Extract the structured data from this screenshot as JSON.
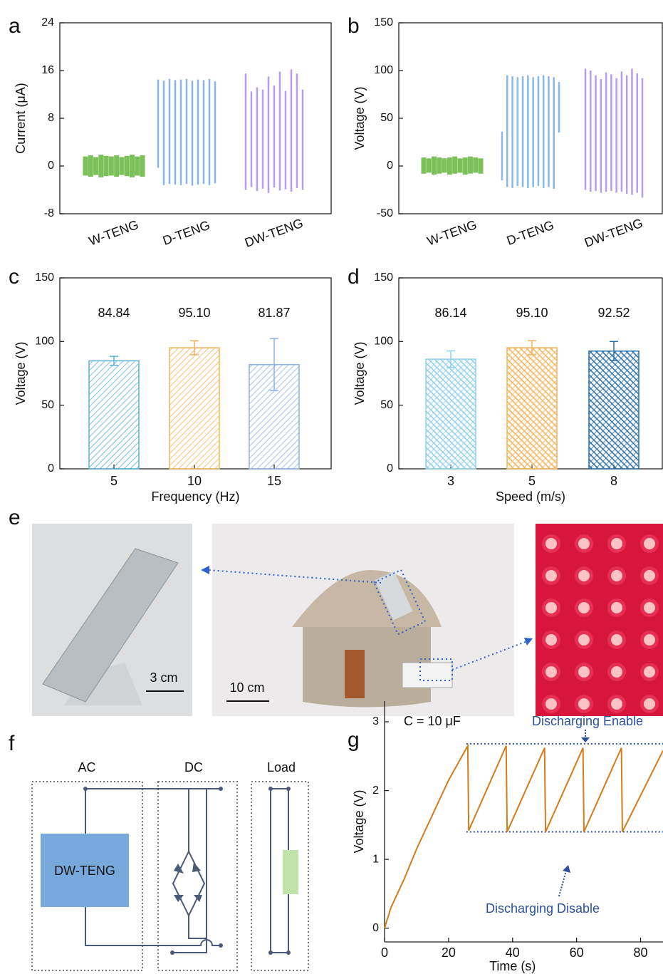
{
  "chart_data": [
    {
      "type": "spikes",
      "label": "a",
      "ylabel": "Current (μA)",
      "categories": [
        "W-TENG",
        "D-TENG",
        "DW-TENG"
      ],
      "colors": [
        "#7cc05a",
        "#8ab6ee",
        "#b79cf0"
      ],
      "peaks": [
        [
          1.6,
          1.8,
          1.5,
          1.9,
          1.7,
          1.6,
          1.8,
          1.5,
          1.7,
          1.9,
          1.6,
          1.8
        ],
        [
          14.5,
          14.3,
          14.6,
          14.4,
          14.5,
          14.6,
          14.3,
          14.5,
          14.4,
          14.6,
          14.2
        ],
        [
          15.5,
          12.5,
          13.2,
          12.8,
          15,
          13.5,
          15.8,
          12.6,
          16.2,
          15.5,
          12.8
        ]
      ],
      "troughs": [
        [
          -1.6,
          -1.8,
          -1.5,
          -1.9,
          -1.7,
          -1.6,
          -1.8,
          -1.5,
          -1.7,
          -1.9,
          -1.6,
          -1.8
        ],
        [
          -0.3,
          -3.2,
          -3,
          -3.1,
          -3.2,
          -3,
          -3.3,
          -3.1,
          -3,
          -3.2,
          -2.9
        ],
        [
          -4,
          -3.5,
          -4.2,
          -3.8,
          -4.5,
          -3.6,
          -4.1,
          -3.9,
          -4.3,
          -3.7,
          -4
        ]
      ],
      "ylim": [
        -8,
        24
      ],
      "yticks": [
        -8,
        0,
        8,
        16,
        24
      ]
    },
    {
      "type": "spikes",
      "label": "b",
      "ylabel": "Voltage (V)",
      "categories": [
        "W-TENG",
        "D-TENG",
        "DW-TENG"
      ],
      "colors": [
        "#7cc05a",
        "#8ab6ee",
        "#b79cf0"
      ],
      "peaks": [
        [
          9,
          8,
          10,
          9,
          8,
          9,
          10,
          8,
          9,
          10,
          9,
          8
        ],
        [
          36,
          95,
          94,
          93,
          94,
          95,
          93,
          94,
          95,
          94,
          93,
          88
        ],
        [
          102,
          100,
          95,
          91,
          98,
          96,
          92,
          99,
          95,
          102,
          97,
          92
        ]
      ],
      "troughs": [
        [
          -8,
          -7,
          -9,
          -8,
          -7,
          -9,
          -8,
          -7,
          -9,
          -8,
          -7,
          -8
        ],
        [
          -15,
          -22,
          -23,
          -21,
          -22,
          -23,
          -22,
          -21,
          -23,
          -22,
          -24,
          35
        ],
        [
          -25,
          -27,
          -26,
          -28,
          -27,
          -26,
          -28,
          -27,
          -29,
          -30,
          -28,
          -33
        ]
      ],
      "ylim": [
        -50,
        150
      ],
      "yticks": [
        -50,
        0,
        50,
        100,
        150
      ]
    },
    {
      "type": "bar",
      "label": "c",
      "ylabel": "Voltage (V)",
      "xlabel": "Frequency (Hz)",
      "categories": [
        "5",
        "10",
        "15"
      ],
      "values": [
        84.84,
        95.1,
        81.87
      ],
      "value_labels": [
        "84.84",
        "95.10",
        "81.87"
      ],
      "errors": [
        3.5,
        5.5,
        20.5
      ],
      "colors": [
        "#5bafd6",
        "#f5b358",
        "#8fb1e6"
      ],
      "ylim": [
        0,
        150
      ],
      "yticks": [
        0,
        50,
        100,
        150
      ]
    },
    {
      "type": "bar",
      "label": "d",
      "ylabel": "Voltage (V)",
      "xlabel": "Speed (m/s)",
      "categories": [
        "3",
        "5",
        "8"
      ],
      "values": [
        86.14,
        95.1,
        92.52
      ],
      "value_labels": [
        "86.14",
        "95.10",
        "92.52"
      ],
      "errors": [
        6.5,
        5.5,
        7.5
      ],
      "colors": [
        "#8fd0ea",
        "#f5b358",
        "#2a6fa8"
      ],
      "ylim": [
        0,
        150
      ],
      "yticks": [
        0,
        50,
        100,
        150
      ]
    },
    {
      "type": "line",
      "label": "g",
      "ylabel": "Voltage (V)",
      "xlabel": "Time (s)",
      "color": "#d47b1a",
      "x": [
        0,
        2,
        6,
        10,
        15,
        20,
        26,
        26.3,
        38,
        38.3,
        50,
        50.3,
        62,
        62.3,
        74,
        74.3,
        87
      ],
      "y": [
        0,
        0.3,
        0.7,
        1.15,
        1.65,
        2.15,
        2.65,
        1.42,
        2.65,
        1.4,
        2.62,
        1.4,
        2.62,
        1.4,
        2.62,
        1.4,
        2.58
      ],
      "hlines": [
        2.68,
        1.4
      ],
      "annotations": [
        "C = 10 μF",
        "Discharging Enable",
        "Discharging Disable"
      ],
      "xlim": [
        0,
        87
      ],
      "xticks": [
        0,
        20,
        40,
        60,
        80
      ],
      "ylim": [
        -0.2,
        3.3
      ],
      "yticks": [
        0,
        1,
        2,
        3
      ]
    }
  ],
  "photos": {
    "label": "e",
    "scale_bars": [
      "3 cm",
      "10 cm"
    ]
  },
  "circuit": {
    "label": "f",
    "sections": [
      "AC",
      "DC",
      "Load"
    ],
    "source": "DW-TENG"
  }
}
